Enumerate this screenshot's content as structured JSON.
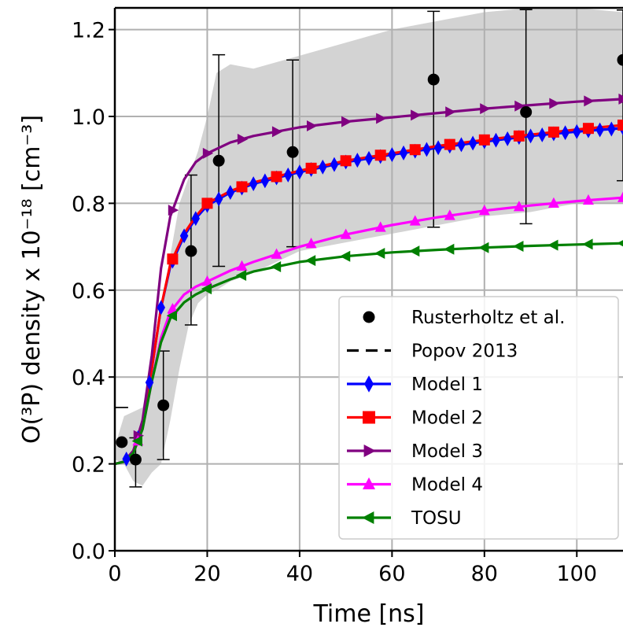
{
  "chart_data": {
    "type": "line",
    "xlabel": "Time [ns]",
    "ylabel": "O(³P) density x 10⁻¹⁸ [cm⁻³]",
    "xlim": [
      0,
      110
    ],
    "ylim": [
      0,
      1.25
    ],
    "xticks": [
      "0",
      "20",
      "40",
      "60",
      "80",
      "100"
    ],
    "yticks": [
      "0.0",
      "0.2",
      "0.4",
      "0.6",
      "0.8",
      "1.0",
      "1.2"
    ],
    "grid": true,
    "legend_position": "lower-right",
    "uncertainty_band": {
      "color": "#d3d3d3",
      "x": [
        0,
        2,
        4,
        6,
        8,
        10,
        12,
        14,
        16,
        18,
        20,
        22,
        25,
        30,
        40,
        60,
        80,
        90,
        100,
        110
      ],
      "lower": [
        0.21,
        0.2,
        0.16,
        0.15,
        0.18,
        0.2,
        0.3,
        0.42,
        0.52,
        0.57,
        0.59,
        0.6,
        0.62,
        0.64,
        0.69,
        0.73,
        0.77,
        0.78,
        0.8,
        0.8
      ],
      "upper": [
        0.24,
        0.31,
        0.32,
        0.33,
        0.42,
        0.55,
        0.68,
        0.8,
        0.86,
        0.92,
        1.0,
        1.1,
        1.12,
        1.11,
        1.14,
        1.2,
        1.24,
        1.25,
        1.25,
        1.24
      ]
    },
    "measurements": {
      "name": "Rusterholtz et al.",
      "color": "#000000",
      "points": [
        {
          "x": 1.5,
          "y": 0.25,
          "err_low": 0.33,
          "err_high": 0.33
        },
        {
          "x": 4.5,
          "y": 0.21,
          "err_low": 0.147,
          "err_high": 0.26
        },
        {
          "x": 10.5,
          "y": 0.335,
          "err_low": 0.21,
          "err_high": 0.46
        },
        {
          "x": 16.5,
          "y": 0.69,
          "err_low": 0.52,
          "err_high": 0.865
        },
        {
          "x": 22.5,
          "y": 0.898,
          "err_low": 0.655,
          "err_high": 1.142
        },
        {
          "x": 38.5,
          "y": 0.918,
          "err_low": 0.7,
          "err_high": 1.13
        },
        {
          "x": 69,
          "y": 1.085,
          "err_low": 0.745,
          "err_high": 1.242
        },
        {
          "x": 89,
          "y": 1.01,
          "err_low": 0.753,
          "err_high": 1.246
        },
        {
          "x": 110,
          "y": 1.13,
          "err_low": 0.852,
          "err_high": 1.245
        }
      ]
    },
    "popov": {
      "name": "Popov 2013",
      "color": "#000000"
    },
    "series": [
      {
        "name": "Model 1",
        "color": "#0000ff",
        "marker": "diamond",
        "x": [
          0,
          2,
          4,
          6,
          8,
          10,
          12,
          15,
          17.5,
          20,
          25,
          30,
          40,
          50,
          60,
          70,
          80,
          90,
          100,
          110
        ],
        "y": [
          0.2,
          0.205,
          0.23,
          0.29,
          0.42,
          0.56,
          0.655,
          0.725,
          0.765,
          0.795,
          0.825,
          0.845,
          0.872,
          0.895,
          0.912,
          0.928,
          0.942,
          0.955,
          0.965,
          0.973
        ],
        "marker_x": [
          2.5,
          5,
          7.5,
          10,
          12.5,
          15,
          17.5,
          20,
          22.5,
          25,
          27.5,
          30,
          32.5,
          35,
          37.5,
          40,
          42.5,
          45,
          47.5,
          50,
          52.5,
          55,
          57.5,
          60,
          62.5,
          65,
          67.5,
          70,
          72.5,
          75,
          77.5,
          80,
          82.5,
          85,
          87.5,
          90,
          92.5,
          95,
          97.5,
          100,
          102.5,
          105,
          107.5,
          110
        ]
      },
      {
        "name": "Model 2",
        "color": "#ff0000",
        "marker": "square",
        "x": [
          0,
          2,
          4,
          6,
          8,
          10,
          12,
          15,
          17.5,
          20,
          25,
          30,
          40,
          50,
          60,
          70,
          80,
          90,
          100,
          110
        ],
        "y": [
          0.2,
          0.205,
          0.23,
          0.29,
          0.42,
          0.56,
          0.66,
          0.73,
          0.77,
          0.8,
          0.828,
          0.848,
          0.875,
          0.898,
          0.915,
          0.932,
          0.946,
          0.958,
          0.97,
          0.98
        ],
        "marker_x": [
          12.5,
          20,
          27.5,
          35,
          42.5,
          50,
          57.5,
          65,
          72.5,
          80,
          87.5,
          95,
          102.5,
          110
        ]
      },
      {
        "name": "Model 3",
        "color": "#800080",
        "marker": "triangle-right",
        "x": [
          0,
          2,
          4,
          6,
          8,
          10,
          12,
          15,
          17.5,
          20,
          25,
          30,
          40,
          50,
          60,
          70,
          80,
          90,
          100,
          110
        ],
        "y": [
          0.2,
          0.205,
          0.23,
          0.3,
          0.45,
          0.65,
          0.77,
          0.855,
          0.895,
          0.915,
          0.94,
          0.955,
          0.975,
          0.988,
          0.998,
          1.008,
          1.018,
          1.026,
          1.034,
          1.04
        ],
        "marker_x": [
          5,
          12.5,
          20,
          27.5,
          35,
          42.5,
          50,
          57.5,
          65,
          72.5,
          80,
          87.5,
          95,
          102.5,
          110
        ]
      },
      {
        "name": "Model 4",
        "color": "#ff00ff",
        "marker": "triangle-up",
        "x": [
          0,
          2,
          4,
          6,
          8,
          10,
          12,
          15,
          17.5,
          20,
          25,
          30,
          40,
          50,
          60,
          70,
          80,
          90,
          100,
          110
        ],
        "y": [
          0.2,
          0.205,
          0.225,
          0.28,
          0.39,
          0.49,
          0.55,
          0.59,
          0.608,
          0.62,
          0.645,
          0.665,
          0.7,
          0.728,
          0.75,
          0.768,
          0.783,
          0.795,
          0.805,
          0.813
        ],
        "marker_x": [
          5,
          12.5,
          20,
          27.5,
          35,
          42.5,
          50,
          57.5,
          65,
          72.5,
          80,
          87.5,
          95,
          102.5,
          110
        ]
      },
      {
        "name": "TOSU",
        "color": "#008000",
        "marker": "triangle-left",
        "x": [
          0,
          2,
          4,
          6,
          8,
          10,
          12,
          15,
          17.5,
          20,
          25,
          30,
          40,
          50,
          60,
          70,
          80,
          90,
          100,
          110
        ],
        "y": [
          0.2,
          0.205,
          0.225,
          0.28,
          0.39,
          0.48,
          0.535,
          0.572,
          0.59,
          0.603,
          0.625,
          0.643,
          0.665,
          0.678,
          0.687,
          0.693,
          0.698,
          0.702,
          0.705,
          0.708
        ],
        "marker_x": [
          5,
          12.5,
          20,
          27.5,
          35,
          42.5,
          50,
          57.5,
          65,
          72.5,
          80,
          87.5,
          95,
          102.5,
          110
        ]
      }
    ]
  }
}
